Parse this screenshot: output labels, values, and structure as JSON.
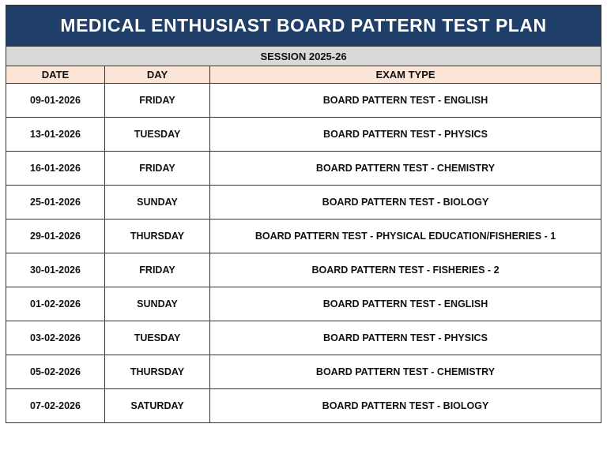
{
  "header": {
    "title": "MEDICAL ENTHUSIAST BOARD PATTERN TEST PLAN",
    "session": "SESSION 2025-26"
  },
  "table": {
    "columns": [
      "DATE",
      "DAY",
      "EXAM TYPE"
    ],
    "rows": [
      [
        "09-01-2026",
        "FRIDAY",
        "BOARD PATTERN TEST - ENGLISH"
      ],
      [
        "13-01-2026",
        "TUESDAY",
        "BOARD PATTERN TEST - PHYSICS"
      ],
      [
        "16-01-2026",
        "FRIDAY",
        "BOARD PATTERN TEST - CHEMISTRY"
      ],
      [
        "25-01-2026",
        "SUNDAY",
        "BOARD PATTERN TEST - BIOLOGY"
      ],
      [
        "29-01-2026",
        "THURSDAY",
        "BOARD PATTERN TEST - PHYSICAL EDUCATION/FISHERIES - 1"
      ],
      [
        "30-01-2026",
        "FRIDAY",
        "BOARD PATTERN TEST - FISHERIES - 2"
      ],
      [
        "01-02-2026",
        "SUNDAY",
        "BOARD PATTERN TEST - ENGLISH"
      ],
      [
        "03-02-2026",
        "TUESDAY",
        "BOARD PATTERN TEST - PHYSICS"
      ],
      [
        "05-02-2026",
        "THURSDAY",
        "BOARD PATTERN TEST - CHEMISTRY"
      ],
      [
        "07-02-2026",
        "SATURDAY",
        "BOARD PATTERN TEST - BIOLOGY"
      ]
    ]
  }
}
